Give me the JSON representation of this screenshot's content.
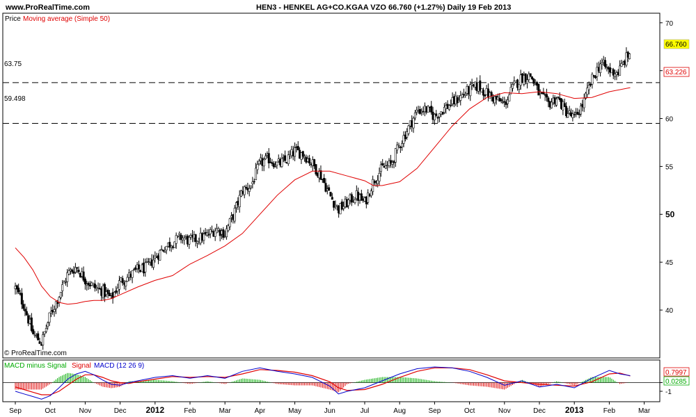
{
  "header": {
    "site": "www.ProRealTime.com",
    "title": "HEN3 - HENKEL AG+CO.KGAA VZO    66.760 (+1.27%)    Daily  19 Feb 2013"
  },
  "price_panel": {
    "legend_prefix": "Price",
    "legend_ma": "Moving average (Simple 50)",
    "watermark": "© ProRealTime.com",
    "level_high_label": "63.75",
    "level_low_label": "59.498",
    "last_price_label": "66.760",
    "ma_label": "63.226"
  },
  "macd_panel": {
    "legend_hist": "MACD minus Signal",
    "legend_signal": "Signal",
    "legend_macd": "MACD (12 26 9)",
    "macd_label": "0.7997",
    "hist_label": "0.0285"
  },
  "colors": {
    "ma": "#e00000",
    "signal": "#e00000",
    "macd": "#0000cc",
    "hist": "#00aa00",
    "last_price_bg": "#ffff00",
    "candle_up": "#ffffff",
    "candle_down": "#000000"
  },
  "chart_data": [
    {
      "type": "candlestick",
      "ylim": [
        35,
        71
      ],
      "yticks": [
        40,
        45,
        50,
        55,
        60,
        65,
        70
      ],
      "yticks_bold": [
        50
      ],
      "x_months": [
        "Sep",
        "Oct",
        "Nov",
        "Dec",
        "2012",
        "Feb",
        "Mar",
        "Apr",
        "May",
        "Jun",
        "Jul",
        "Aug",
        "Sep",
        "Oct",
        "Nov",
        "Dec",
        "2013",
        "Feb",
        "Mar"
      ],
      "x_months_bold": [
        "2012",
        "2013"
      ],
      "price_path": [
        [
          0,
          42.3
        ],
        [
          0.25,
          40.5
        ],
        [
          0.5,
          37.5
        ],
        [
          0.75,
          36.6
        ],
        [
          1,
          39.5
        ],
        [
          1.25,
          41.5
        ],
        [
          1.5,
          43.8
        ],
        [
          1.75,
          44.5
        ],
        [
          2,
          43.2
        ],
        [
          2.25,
          42.4
        ],
        [
          2.5,
          42.0
        ],
        [
          2.75,
          41.2
        ],
        [
          3,
          43.0
        ],
        [
          3.25,
          43.5
        ],
        [
          3.5,
          44.2
        ],
        [
          3.75,
          44.4
        ],
        [
          4,
          45.5
        ],
        [
          4.25,
          46.5
        ],
        [
          4.5,
          47.1
        ],
        [
          4.75,
          47.6
        ],
        [
          5,
          47.2
        ],
        [
          5.25,
          47.5
        ],
        [
          5.5,
          47.8
        ],
        [
          5.75,
          48.5
        ],
        [
          6,
          48.0
        ],
        [
          6.25,
          50.0
        ],
        [
          6.5,
          52.5
        ],
        [
          6.75,
          53.0
        ],
        [
          7,
          55.3
        ],
        [
          7.25,
          55.8
        ],
        [
          7.5,
          55.2
        ],
        [
          7.75,
          55.6
        ],
        [
          8,
          56.6
        ],
        [
          8.25,
          56.3
        ],
        [
          8.5,
          55.3
        ],
        [
          8.75,
          54.0
        ],
        [
          9,
          52.0
        ],
        [
          9.25,
          50.5
        ],
        [
          9.5,
          51.2
        ],
        [
          9.75,
          52.0
        ],
        [
          10,
          51.2
        ],
        [
          10.25,
          53.5
        ],
        [
          10.5,
          54.8
        ],
        [
          10.75,
          55.2
        ],
        [
          11,
          57.3
        ],
        [
          11.25,
          59.0
        ],
        [
          11.5,
          60.8
        ],
        [
          11.75,
          61.0
        ],
        [
          12,
          60.2
        ],
        [
          12.25,
          61.0
        ],
        [
          12.5,
          61.6
        ],
        [
          12.75,
          62.3
        ],
        [
          13,
          63.0
        ],
        [
          13.25,
          63.4
        ],
        [
          13.5,
          62.6
        ],
        [
          13.75,
          62.0
        ],
        [
          14,
          61.5
        ],
        [
          14.25,
          63.3
        ],
        [
          14.5,
          64.3
        ],
        [
          14.75,
          64.5
        ],
        [
          15,
          62.5
        ],
        [
          15.25,
          61.5
        ],
        [
          15.5,
          62.2
        ],
        [
          15.75,
          60.8
        ],
        [
          16,
          60.0
        ],
        [
          16.25,
          61.5
        ],
        [
          16.5,
          64.0
        ],
        [
          16.75,
          65.8
        ],
        [
          17,
          65.0
        ],
        [
          17.25,
          64.8
        ],
        [
          17.5,
          66.4
        ],
        [
          17.6,
          66.76
        ]
      ],
      "moving_average_sma50": [
        [
          0,
          46.5
        ],
        [
          0.25,
          45.5
        ],
        [
          0.5,
          44.2
        ],
        [
          0.75,
          42.5
        ],
        [
          1,
          41.4
        ],
        [
          1.25,
          40.8
        ],
        [
          1.5,
          40.6
        ],
        [
          1.75,
          40.7
        ],
        [
          2,
          40.9
        ],
        [
          2.25,
          41.0
        ],
        [
          2.5,
          41.0
        ],
        [
          2.75,
          41.2
        ],
        [
          3,
          41.6
        ],
        [
          3.5,
          42.4
        ],
        [
          4,
          43.1
        ],
        [
          4.5,
          43.6
        ],
        [
          5,
          44.8
        ],
        [
          5.5,
          45.7
        ],
        [
          6,
          46.7
        ],
        [
          6.5,
          48.0
        ],
        [
          7,
          50.0
        ],
        [
          7.5,
          52.0
        ],
        [
          8,
          53.6
        ],
        [
          8.5,
          54.5
        ],
        [
          9,
          54.5
        ],
        [
          9.5,
          54.0
        ],
        [
          10,
          53.5
        ],
        [
          10.25,
          53.0
        ],
        [
          10.5,
          53.0
        ],
        [
          11,
          53.4
        ],
        [
          11.5,
          54.8
        ],
        [
          12,
          57.0
        ],
        [
          12.5,
          59.2
        ],
        [
          13,
          61.0
        ],
        [
          13.5,
          62.2
        ],
        [
          14,
          62.7
        ],
        [
          14.5,
          62.6
        ],
        [
          15,
          62.8
        ],
        [
          15.5,
          62.6
        ],
        [
          16,
          62.1
        ],
        [
          16.5,
          62.2
        ],
        [
          17,
          62.8
        ],
        [
          17.6,
          63.226
        ]
      ],
      "levels": [
        63.75,
        59.498
      ],
      "last_price": 66.76,
      "ma_last": 63.226
    },
    {
      "type": "line",
      "name": "MACD (12 26 9)",
      "macd_path": [
        [
          0,
          -1.0
        ],
        [
          0.25,
          -1.3
        ],
        [
          0.5,
          -1.6
        ],
        [
          0.75,
          -1.9
        ],
        [
          1,
          -1.5
        ],
        [
          1.25,
          -0.6
        ],
        [
          1.5,
          0.4
        ],
        [
          1.75,
          1.0
        ],
        [
          2,
          1.3
        ],
        [
          2.25,
          0.9
        ],
        [
          2.5,
          0.3
        ],
        [
          2.75,
          -0.2
        ],
        [
          3,
          -0.3
        ],
        [
          3.25,
          0.0
        ],
        [
          3.5,
          0.2
        ],
        [
          4,
          0.6
        ],
        [
          4.5,
          0.8
        ],
        [
          5,
          0.5
        ],
        [
          5.5,
          0.8
        ],
        [
          6,
          0.5
        ],
        [
          6.5,
          1.3
        ],
        [
          7,
          1.7
        ],
        [
          7.5,
          1.3
        ],
        [
          8,
          1.0
        ],
        [
          8.5,
          0.6
        ],
        [
          9,
          -0.4
        ],
        [
          9.25,
          -1.3
        ],
        [
          9.5,
          -1.0
        ],
        [
          10,
          -0.6
        ],
        [
          10.5,
          0.2
        ],
        [
          11,
          1.0
        ],
        [
          11.5,
          1.6
        ],
        [
          12,
          1.8
        ],
        [
          12.5,
          1.7
        ],
        [
          13,
          1.3
        ],
        [
          13.5,
          0.6
        ],
        [
          14,
          -0.3
        ],
        [
          14.5,
          0.2
        ],
        [
          15,
          -0.5
        ],
        [
          15.5,
          -0.2
        ],
        [
          16,
          -0.6
        ],
        [
          16.5,
          0.5
        ],
        [
          17,
          1.4
        ],
        [
          17.3,
          1.0
        ],
        [
          17.6,
          0.7997
        ]
      ],
      "signal_path": [
        [
          0,
          -0.5
        ],
        [
          0.25,
          -0.8
        ],
        [
          0.5,
          -1.1
        ],
        [
          0.75,
          -1.4
        ],
        [
          1,
          -1.4
        ],
        [
          1.25,
          -1.0
        ],
        [
          1.5,
          -0.3
        ],
        [
          1.75,
          0.4
        ],
        [
          2,
          0.9
        ],
        [
          2.25,
          0.9
        ],
        [
          2.5,
          0.6
        ],
        [
          2.75,
          0.2
        ],
        [
          3,
          0.0
        ],
        [
          3.25,
          -0.1
        ],
        [
          3.5,
          0.1
        ],
        [
          4,
          0.4
        ],
        [
          4.5,
          0.7
        ],
        [
          5,
          0.6
        ],
        [
          5.5,
          0.7
        ],
        [
          6,
          0.6
        ],
        [
          6.5,
          1.0
        ],
        [
          7,
          1.5
        ],
        [
          7.5,
          1.4
        ],
        [
          8,
          1.2
        ],
        [
          8.5,
          0.8
        ],
        [
          9,
          0.1
        ],
        [
          9.25,
          -0.6
        ],
        [
          9.5,
          -0.9
        ],
        [
          10,
          -0.8
        ],
        [
          10.5,
          -0.2
        ],
        [
          11,
          0.6
        ],
        [
          11.5,
          1.3
        ],
        [
          12,
          1.7
        ],
        [
          12.5,
          1.7
        ],
        [
          13,
          1.5
        ],
        [
          13.5,
          0.9
        ],
        [
          14,
          0.2
        ],
        [
          14.5,
          0.0
        ],
        [
          15,
          -0.2
        ],
        [
          15.5,
          -0.3
        ],
        [
          16,
          -0.4
        ],
        [
          16.5,
          0.1
        ],
        [
          17,
          1.0
        ],
        [
          17.3,
          1.1
        ],
        [
          17.6,
          0.77
        ]
      ],
      "ylim": [
        -2.2,
        2.6
      ],
      "yticks": [
        0,
        -1
      ],
      "macd_last": 0.7997,
      "hist_last": 0.0285
    }
  ]
}
